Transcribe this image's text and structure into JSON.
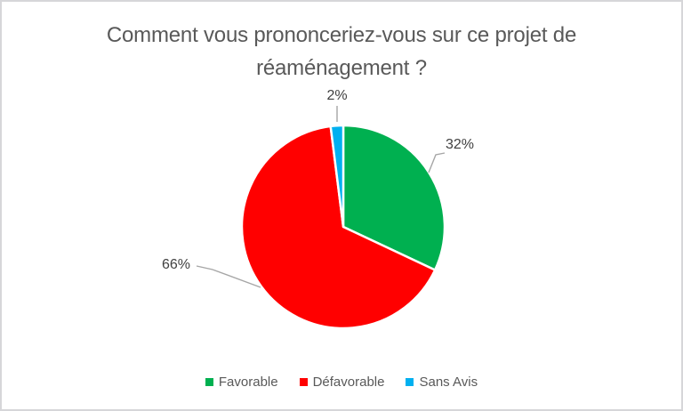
{
  "window": {
    "background": "#FFFFFF",
    "frame_border_color": "#D6D6D9"
  },
  "chart_data": {
    "type": "pie",
    "title": "Comment vous prononceriez-vous sur ce projet de réaménagement ?",
    "categories": [
      "Favorable",
      "Défavorable",
      "Sans Avis"
    ],
    "values": [
      32,
      66,
      2
    ],
    "unit": "%",
    "colors": [
      "#00B050",
      "#FF0000",
      "#00B0F0"
    ],
    "data_labels": [
      "32%",
      "66%",
      "2%"
    ],
    "legend_position": "bottom",
    "start_angle_deg": 0,
    "direction": "clockwise",
    "slice_border_color": "#FFFFFF",
    "title_color": "#595959",
    "data_label_color": "#404040",
    "legend_text_color": "#595959",
    "leader_line_color": "#A6A6A6"
  }
}
